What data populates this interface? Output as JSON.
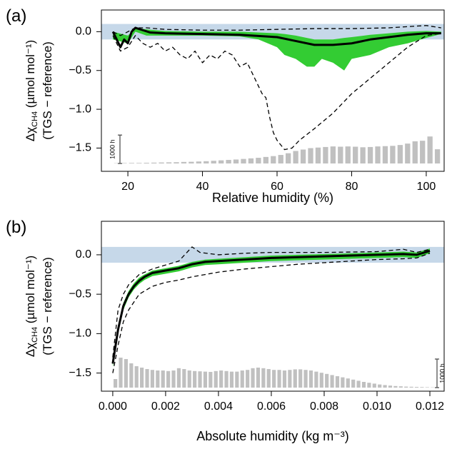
{
  "chart_data": [
    {
      "type": "line",
      "panel_label": "(a)",
      "xlabel": "Relative humidity (%)",
      "ylabel": {
        "symbol": "Δχ",
        "subscript": "CH4",
        "unit": " (µmol mol⁻¹)",
        "line2": "(TGS − reference)"
      },
      "xlim": [
        12.9,
        104.8
      ],
      "ylim": [
        -1.8,
        0.28
      ],
      "xticks": [
        20,
        40,
        60,
        80,
        100
      ],
      "yticks": [
        {
          "value": 0,
          "label": "0.0"
        },
        {
          "value": -0.5,
          "label": "−0.5"
        },
        {
          "value": -1,
          "label": "−1.0"
        },
        {
          "value": -1.5,
          "label": "−1.5"
        }
      ],
      "band": [
        -0.1,
        0.1
      ],
      "band_color": "#c6d8e9",
      "series": [
        {
          "style": "area",
          "color": "#33cc33",
          "x": [
            16,
            20,
            22,
            25,
            30,
            40,
            50,
            55,
            60,
            62,
            65,
            68,
            70,
            72,
            75,
            78,
            80,
            85,
            90,
            95,
            100,
            104
          ],
          "upper": [
            0.0,
            -0.05,
            0.05,
            0.03,
            0.01,
            0.0,
            0.0,
            -0.01,
            -0.02,
            -0.03,
            -0.05,
            -0.08,
            -0.1,
            -0.1,
            -0.1,
            -0.08,
            -0.07,
            -0.04,
            -0.02,
            0.0,
            0.01,
            0.0
          ],
          "lower": [
            -0.1,
            -0.15,
            0.0,
            -0.05,
            -0.05,
            -0.05,
            -0.06,
            -0.1,
            -0.2,
            -0.3,
            -0.35,
            -0.45,
            -0.45,
            -0.35,
            -0.4,
            -0.5,
            -0.35,
            -0.3,
            -0.2,
            -0.15,
            -0.08,
            -0.03
          ]
        },
        {
          "style": "dashed",
          "color": "#000000",
          "x": [
            16,
            18,
            20,
            22,
            25,
            30,
            40,
            50,
            60,
            70,
            80,
            90,
            100,
            104
          ],
          "values": [
            0.0,
            -0.05,
            0.0,
            0.05,
            0.05,
            0.03,
            0.02,
            0.02,
            0.03,
            0.04,
            0.04,
            0.05,
            0.08,
            0.05
          ]
        },
        {
          "style": "dashed",
          "color": "#000000",
          "x": [
            16,
            18,
            20,
            22,
            24,
            26,
            28,
            30,
            32,
            34,
            36,
            38,
            40,
            42,
            44,
            46,
            48,
            50,
            52,
            54,
            56,
            57,
            58,
            59,
            60,
            62,
            64,
            66,
            70,
            75,
            80,
            85,
            90,
            95,
            100,
            104
          ],
          "values": [
            -0.05,
            -0.25,
            -0.2,
            -0.05,
            -0.15,
            -0.2,
            -0.15,
            -0.25,
            -0.2,
            -0.3,
            -0.35,
            -0.25,
            -0.4,
            -0.3,
            -0.35,
            -0.25,
            -0.3,
            -0.45,
            -0.4,
            -0.6,
            -0.8,
            -0.85,
            -1.1,
            -1.3,
            -1.4,
            -1.52,
            -1.5,
            -1.4,
            -1.25,
            -1.05,
            -0.8,
            -0.6,
            -0.4,
            -0.2,
            -0.05,
            -0.02
          ]
        },
        {
          "style": "solid",
          "color": "#000000",
          "x": [
            16,
            17,
            18,
            19,
            20,
            21,
            22,
            24,
            26,
            30,
            40,
            50,
            60,
            65,
            70,
            75,
            80,
            85,
            90,
            95,
            100,
            104
          ],
          "values": [
            0.0,
            -0.1,
            -0.2,
            -0.1,
            -0.15,
            0.0,
            0.05,
            0.02,
            -0.01,
            -0.02,
            -0.03,
            -0.04,
            -0.07,
            -0.12,
            -0.17,
            -0.17,
            -0.15,
            -0.1,
            -0.07,
            -0.04,
            -0.02,
            -0.02
          ]
        }
      ],
      "hist": {
        "color": "#c0c0c0",
        "ylim": [
          -276,
          5400
        ],
        "bins": [
          16,
          18,
          20,
          22,
          24,
          26,
          28,
          30,
          32,
          34,
          36,
          38,
          40,
          42,
          44,
          46,
          48,
          50,
          52,
          54,
          56,
          58,
          60,
          62,
          64,
          66,
          68,
          70,
          72,
          74,
          76,
          78,
          80,
          82,
          84,
          86,
          88,
          90,
          92,
          94,
          96,
          98,
          100,
          102,
          104
        ],
        "counts": [
          10,
          15,
          20,
          20,
          25,
          30,
          35,
          40,
          45,
          55,
          60,
          70,
          80,
          95,
          110,
          125,
          140,
          160,
          180,
          200,
          230,
          260,
          300,
          360,
          440,
          490,
          540,
          560,
          580,
          600,
          590,
          600,
          590,
          570,
          580,
          600,
          610,
          620,
          650,
          700,
          780,
          800,
          950,
          500
        ],
        "scale_bar": {
          "value": 1000,
          "label": "1000 h"
        },
        "scale_bar_corner": "left"
      }
    },
    {
      "type": "line",
      "panel_label": "(b)",
      "xlabel": "Absolute humidity (kg m⁻³)",
      "ylabel": {
        "symbol": "Δχ",
        "subscript": "CH4",
        "unit": " (µmol mol⁻¹)",
        "line2": "(TGS − reference)"
      },
      "xlim": [
        -0.00043,
        0.01254
      ],
      "ylim": [
        -1.73,
        0.425
      ],
      "xticks": [
        {
          "value": 0,
          "label": "0.000"
        },
        {
          "value": 0.002,
          "label": "0.002"
        },
        {
          "value": 0.004,
          "label": "0.004"
        },
        {
          "value": 0.006,
          "label": "0.006"
        },
        {
          "value": 0.008,
          "label": "0.008"
        },
        {
          "value": 0.01,
          "label": "0.010"
        },
        {
          "value": 0.012,
          "label": "0.012"
        }
      ],
      "yticks": [
        {
          "value": 0,
          "label": "0.0"
        },
        {
          "value": -0.5,
          "label": "−0.5"
        },
        {
          "value": -1,
          "label": "−1.0"
        },
        {
          "value": -1.5,
          "label": "−1.5"
        }
      ],
      "band": [
        -0.1,
        0.1
      ],
      "band_color": "#c6d8e9",
      "series": [
        {
          "style": "area",
          "color": "#33cc33",
          "x": [
            0,
            0.0002,
            0.0004,
            0.0006,
            0.0008,
            0.001,
            0.0012,
            0.0015,
            0.002,
            0.0025,
            0.003,
            0.0035,
            0.004,
            0.005,
            0.006,
            0.007,
            0.008,
            0.009,
            0.01,
            0.011,
            0.0115,
            0.012
          ],
          "upper": [
            -1.3,
            -0.9,
            -0.61,
            -0.46,
            -0.36,
            -0.29,
            -0.25,
            -0.2,
            -0.17,
            -0.14,
            -0.09,
            -0.06,
            -0.05,
            -0.03,
            -0.01,
            0.0,
            0.01,
            0.02,
            0.03,
            0.04,
            0.03,
            0.08
          ],
          "lower": [
            -1.42,
            -1.0,
            -0.7,
            -0.54,
            -0.44,
            -0.37,
            -0.32,
            -0.27,
            -0.24,
            -0.21,
            -0.16,
            -0.13,
            -0.12,
            -0.1,
            -0.08,
            -0.07,
            -0.06,
            -0.05,
            -0.04,
            -0.03,
            -0.04,
            0.02
          ]
        },
        {
          "style": "dashed",
          "color": "#000000",
          "x": [
            0,
            0.0002,
            0.0004,
            0.0006,
            0.001,
            0.0015,
            0.002,
            0.0025,
            0.003,
            0.0033,
            0.004,
            0.005,
            0.006,
            0.008,
            0.01,
            0.011,
            0.0115,
            0.012
          ],
          "values": [
            -1.3,
            -0.7,
            -0.5,
            -0.38,
            -0.25,
            -0.18,
            -0.13,
            -0.08,
            0.1,
            0.03,
            0.0,
            0.02,
            0.03,
            0.03,
            0.04,
            0.07,
            0.03,
            0.07
          ]
        },
        {
          "style": "dashed",
          "color": "#000000",
          "x": [
            0,
            0.0002,
            0.0004,
            0.0006,
            0.0008,
            0.001,
            0.0015,
            0.002,
            0.0025,
            0.003,
            0.004,
            0.005,
            0.006,
            0.007,
            0.008,
            0.009,
            0.01,
            0.011,
            0.0115,
            0.012
          ],
          "values": [
            -1.5,
            -1.15,
            -0.85,
            -0.7,
            -0.6,
            -0.5,
            -0.4,
            -0.35,
            -0.32,
            -0.28,
            -0.22,
            -0.18,
            -0.15,
            -0.12,
            -0.1,
            -0.08,
            -0.06,
            -0.05,
            -0.04,
            0.02
          ]
        },
        {
          "style": "solid",
          "color": "#000000",
          "x": [
            0,
            0.0002,
            0.0004,
            0.0006,
            0.0008,
            0.001,
            0.0012,
            0.0015,
            0.002,
            0.0025,
            0.003,
            0.0035,
            0.004,
            0.005,
            0.006,
            0.007,
            0.008,
            0.009,
            0.01,
            0.011,
            0.0115,
            0.012
          ],
          "values": [
            -1.38,
            -0.95,
            -0.65,
            -0.5,
            -0.4,
            -0.33,
            -0.28,
            -0.23,
            -0.2,
            -0.17,
            -0.12,
            -0.09,
            -0.08,
            -0.06,
            -0.04,
            -0.03,
            -0.02,
            -0.01,
            0.0,
            0.01,
            0.0,
            0.05
          ]
        }
      ],
      "hist": {
        "color": "#c0c0c0",
        "ylim": [
          -125,
          5825
        ],
        "bins": [
          0,
          0.0002,
          0.0004,
          0.0006,
          0.0008,
          0.001,
          0.0012,
          0.0014,
          0.0016,
          0.0018,
          0.002,
          0.0022,
          0.0024,
          0.0026,
          0.0028,
          0.003,
          0.0032,
          0.0034,
          0.0036,
          0.0038,
          0.004,
          0.0042,
          0.0044,
          0.0046,
          0.0048,
          0.005,
          0.0052,
          0.0054,
          0.0056,
          0.0058,
          0.006,
          0.0062,
          0.0064,
          0.0066,
          0.0068,
          0.007,
          0.0072,
          0.0074,
          0.0076,
          0.0078,
          0.008,
          0.0082,
          0.0084,
          0.0086,
          0.0088,
          0.009,
          0.0092,
          0.0094,
          0.0096,
          0.0098,
          0.01,
          0.0102,
          0.0104,
          0.0106,
          0.0108,
          0.011,
          0.0112,
          0.0114,
          0.0116,
          0.0118,
          0.012,
          0.0122
        ],
        "counts": [
          300,
          1050,
          1000,
          850,
          750,
          700,
          650,
          620,
          600,
          600,
          580,
          600,
          680,
          650,
          600,
          580,
          570,
          560,
          550,
          580,
          600,
          580,
          560,
          560,
          600,
          620,
          680,
          700,
          680,
          650,
          620,
          620,
          600,
          620,
          640,
          640,
          620,
          600,
          560,
          520,
          480,
          440,
          400,
          360,
          320,
          280,
          240,
          200,
          170,
          140,
          110,
          90,
          70,
          55,
          45,
          35,
          30,
          25,
          20,
          15,
          10
        ],
        "scale_bar": {
          "value": 1000,
          "label": "1000 h"
        },
        "scale_bar_corner": "right"
      }
    }
  ]
}
